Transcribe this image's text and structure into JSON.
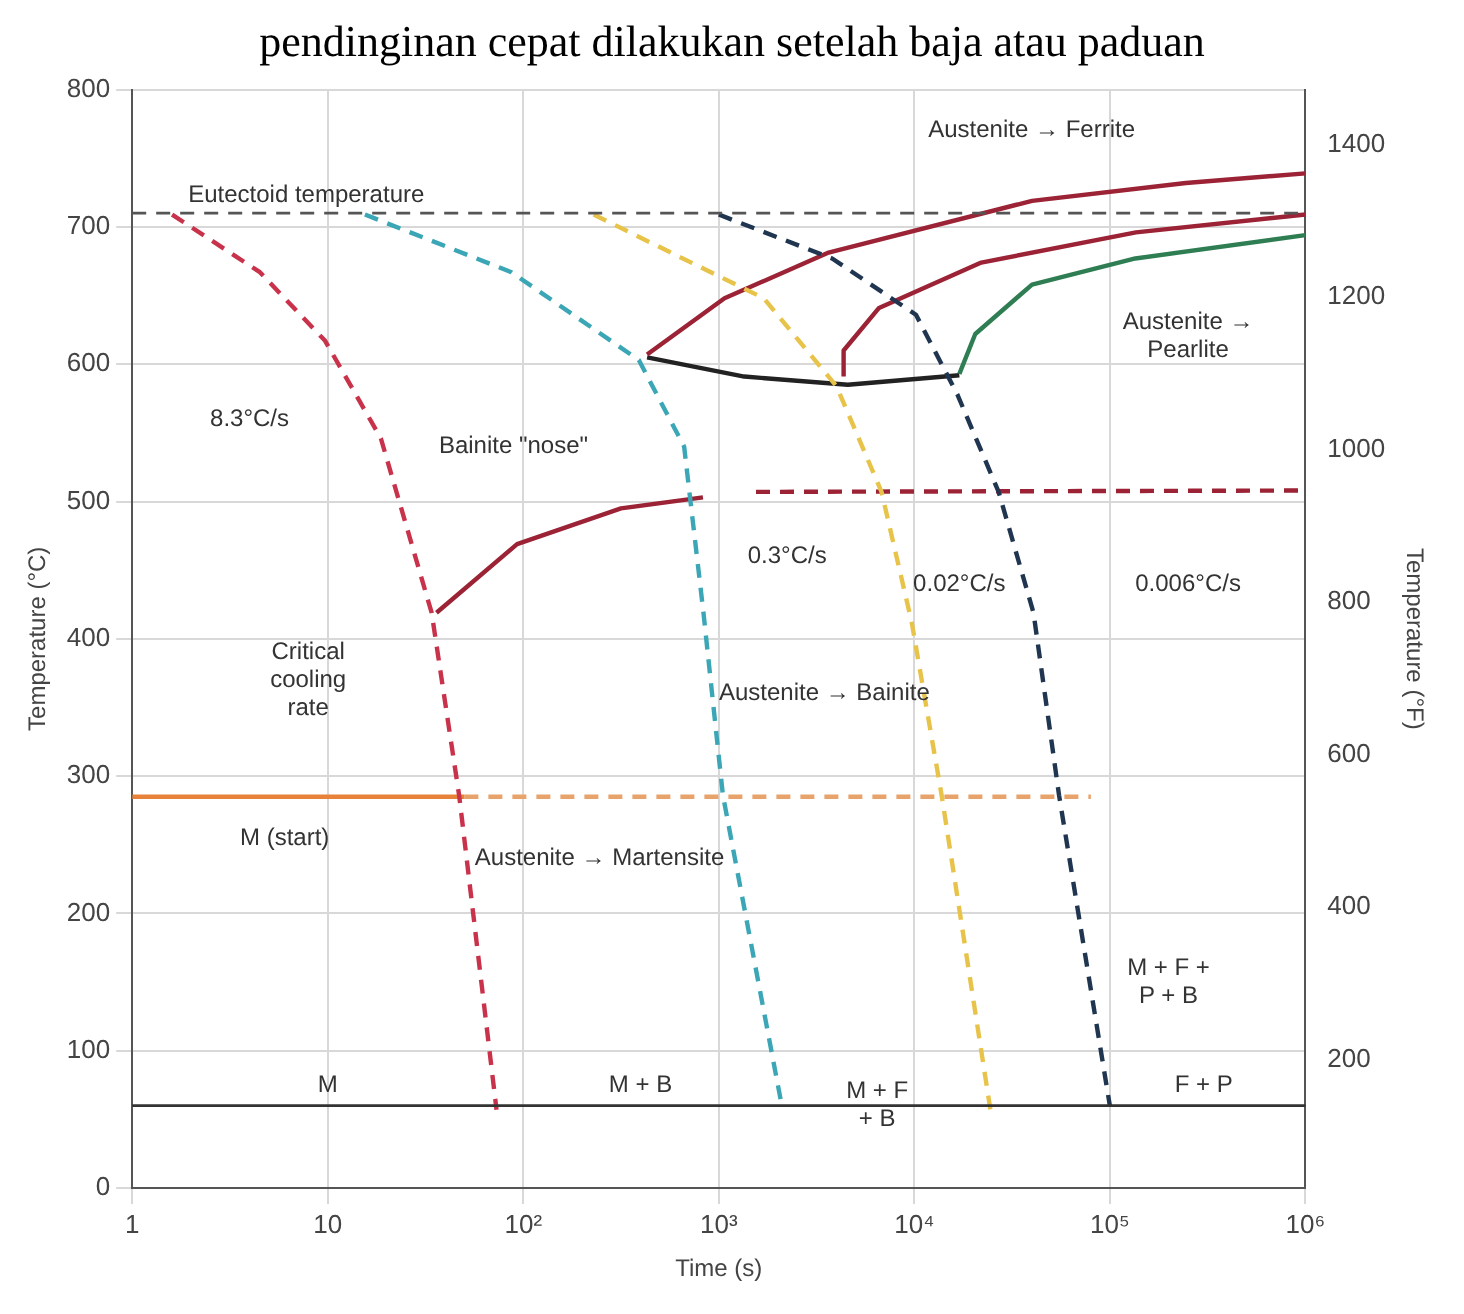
{
  "chart_data": {
    "type": "line",
    "title": "pendinginan cepat dilakukan setelah baja atau paduan",
    "xlabel": "Time (s)",
    "ylabel": "Temperature (°C)",
    "y2label": "Temperature (°F)",
    "log": "x",
    "grid": true,
    "legend": false,
    "marker": "none",
    "xlim": [
      1,
      1000000
    ],
    "xticks": [
      {
        "value": 1,
        "label": "1"
      },
      {
        "value": 10,
        "label": "10"
      },
      {
        "value": 100,
        "label": "10²"
      },
      {
        "value": 1000,
        "label": "10³"
      },
      {
        "value": 10000,
        "label": "10⁴"
      },
      {
        "value": 100000,
        "label": "10⁵"
      },
      {
        "value": 1000000,
        "label": "10⁶"
      }
    ],
    "ylim": [
      0,
      800
    ],
    "yticks": [
      0,
      100,
      200,
      300,
      400,
      500,
      600,
      700,
      800
    ],
    "y2lim": [
      32,
      1472
    ],
    "y2ticks": [
      200,
      400,
      600,
      800,
      1000,
      1200,
      1400
    ],
    "series": [
      {
        "color": "#c8324a",
        "line_style": "dashed",
        "x": [
          1.6,
          4.5,
          9.7,
          18.7,
          34,
          47,
          73
        ],
        "values": [
          709,
          667,
          617,
          546,
          419,
          286,
          57
        ]
      },
      {
        "color": "#3ba6b5",
        "line_style": "dashed",
        "x": [
          15.5,
          87,
          390,
          665,
          835,
          1050,
          2100
        ],
        "values": [
          709,
          667,
          603,
          540,
          419,
          286,
          60
        ]
      },
      {
        "color": "#e8c34a",
        "line_style": "dashed",
        "x": [
          229,
          1700,
          4000,
          6800,
          9700,
          13800,
          24500
        ],
        "values": [
          709,
          648,
          584,
          507,
          412,
          286,
          57
        ]
      },
      {
        "color": "#1f3550",
        "line_style": "dashed",
        "x": [
          1000,
          3800,
          10200,
          16600,
          27000,
          40700,
          55000,
          100000
        ],
        "values": [
          709,
          677,
          636,
          578,
          507,
          419,
          286,
          60
        ]
      },
      {
        "color": "#9b2335",
        "line_style": "solid",
        "x": [
          430,
          1070,
          3600,
          40000,
          245000,
          1000000
        ],
        "values": [
          607,
          648,
          681,
          719,
          732,
          739
        ]
      },
      {
        "color": "#9b2335",
        "line_style": "solid",
        "x": [
          4350,
          4350,
          6600,
          22000,
          136000,
          1000000
        ],
        "values": [
          591,
          610,
          641,
          674,
          696,
          709
        ]
      },
      {
        "color": "#2f7d52",
        "line_style": "solid",
        "x": [
          17000,
          20500,
          40000,
          135000,
          1000000
        ],
        "values": [
          593,
          622,
          658,
          677,
          694
        ]
      },
      {
        "color": "#222222",
        "line_style": "solid",
        "x": [
          430,
          1350,
          4570,
          17000
        ],
        "values": [
          605,
          591,
          585,
          592
        ]
      },
      {
        "color": "#9b2335",
        "line_style": "solid",
        "x": [
          36,
          93,
          316,
          830
        ],
        "values": [
          419,
          469,
          495,
          503
        ]
      },
      {
        "color": "#9b2335",
        "line_style": "dashed",
        "x": [
          1550,
          1000000
        ],
        "values": [
          507,
          508
        ]
      },
      {
        "color": "#e8823a",
        "line_style": "solid",
        "x": [
          1,
          50
        ],
        "values": [
          285,
          285
        ]
      },
      {
        "color": "#e8a36a",
        "line_style": "dashed",
        "x": [
          50,
          80000
        ],
        "values": [
          285,
          285
        ]
      }
    ],
    "ref_lines": [
      {
        "axis": "y",
        "value": 710,
        "label": "Eutectoid temperature",
        "color": "#555555",
        "line_style": "dashed"
      },
      {
        "axis": "y",
        "value": 60,
        "color": "#333333",
        "line_style": "solid"
      }
    ],
    "annotations": [
      "8.3°C/s",
      "0.3°C/s",
      "0.02°C/s",
      "0.006°C/s",
      "Austenite → Ferrite",
      "Austenite →\nPearlite",
      "Bainite \"nose\"",
      "Critical\ncooling\nrate",
      "Austenite → Bainite",
      "M (start)",
      "Austenite → Martensite",
      "M",
      "M + B",
      "M + F\n+ B",
      "M + F +\nP + B",
      "F + P"
    ]
  }
}
